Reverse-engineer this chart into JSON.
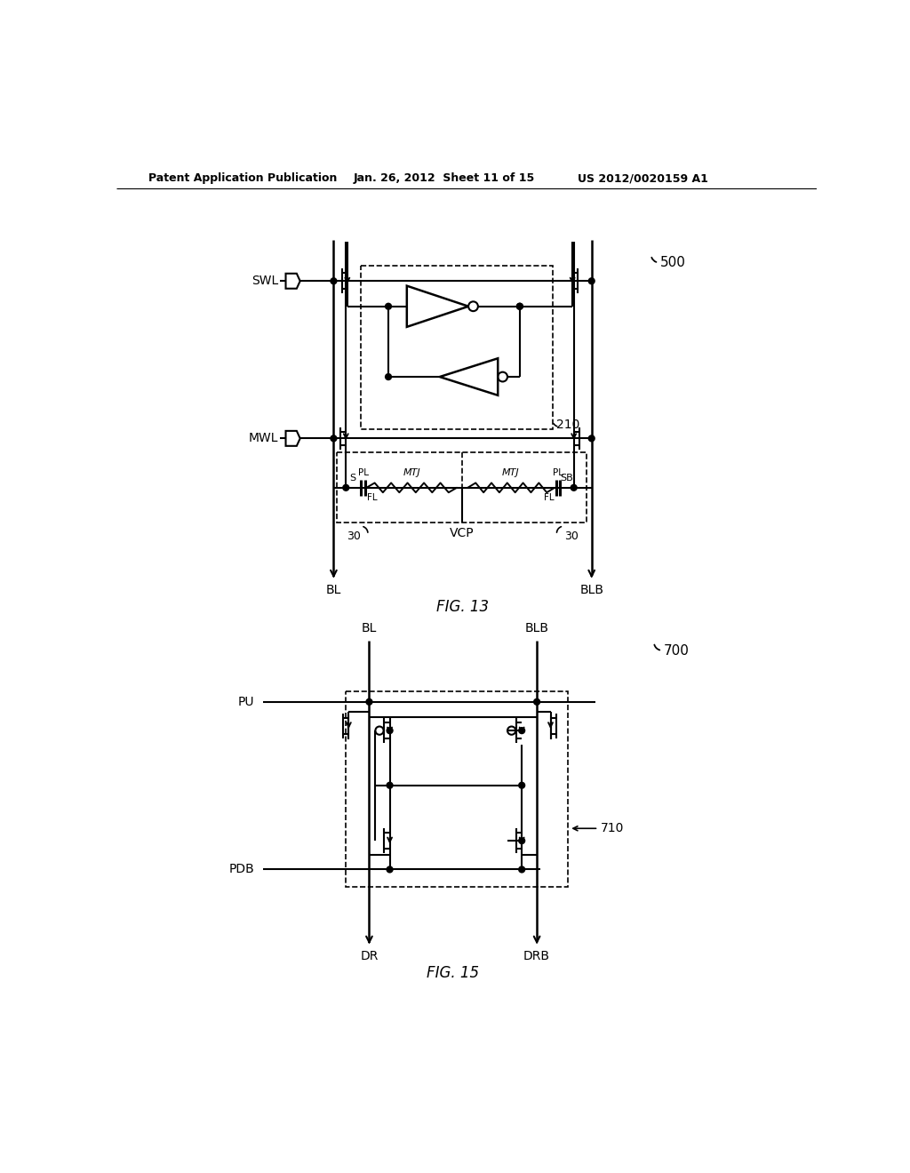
{
  "bg_color": "#ffffff",
  "header_text": "Patent Application Publication",
  "header_date": "Jan. 26, 2012  Sheet 11 of 15",
  "header_patent": "US 2012/0020159 A1",
  "fig13_label": "FIG. 13",
  "fig15_label": "FIG. 15",
  "label_500": "500",
  "label_700": "700",
  "label_210": "210",
  "label_710": "710",
  "label_30a": "30",
  "label_30b": "30",
  "label_VCP": "VCP",
  "label_SWL": "SWL",
  "label_MWL": "MWL",
  "label_BL_13": "BL",
  "label_BLB_13": "BLB",
  "label_BL_15": "BL",
  "label_BLB_15": "BLB",
  "label_PU": "PU",
  "label_PDB": "PDB",
  "label_DR": "DR",
  "label_DRB": "DRB",
  "label_S": "S",
  "label_SB": "SB",
  "label_MTJ1": "MTJ",
  "label_MTJ2": "MTJ",
  "label_PL1": "PL",
  "label_PL2": "PL",
  "label_FL1": "FL",
  "label_FL2": "FL"
}
